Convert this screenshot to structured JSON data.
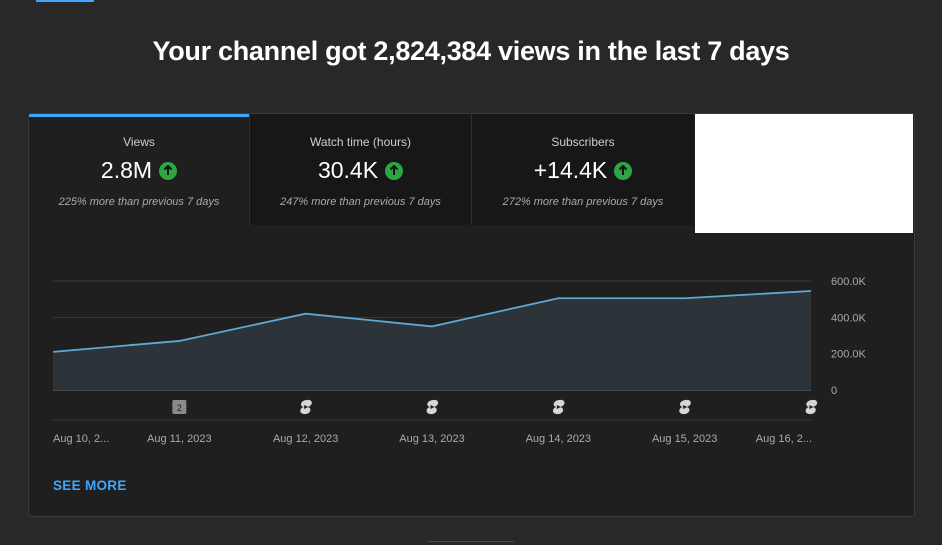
{
  "headline": "Your channel got 2,824,384 views in the last 7 days",
  "metrics": [
    {
      "label": "Views",
      "value": "2.8M",
      "change": "225% more than previous 7 days",
      "active": true
    },
    {
      "label": "Watch time (hours)",
      "value": "30.4K",
      "change": "247% more than previous 7 days",
      "active": false
    },
    {
      "label": "Subscribers",
      "value": "+14.4K",
      "change": "272% more than previous 7 days",
      "active": false
    }
  ],
  "see_more": "SEE MORE",
  "colors": {
    "accent": "#3ea6ff",
    "up_badge": "#2ba640",
    "line": "#5fa8d3",
    "area": "#2c3339"
  },
  "chart_data": {
    "type": "area",
    "x": [
      "Aug 10, 2...",
      "Aug 11, 2023",
      "Aug 12, 2023",
      "Aug 13, 2023",
      "Aug 14, 2023",
      "Aug 15, 2023",
      "Aug 16, 2..."
    ],
    "series": [
      {
        "values": [
          210000,
          270000,
          420000,
          350000,
          505000,
          505000,
          545000
        ]
      }
    ],
    "ylim": [
      0,
      600000
    ],
    "y_ticks": [
      "600.0K",
      "400.0K",
      "200.0K",
      "0"
    ],
    "y_tick_values": [
      600000,
      400000,
      200000,
      0
    ],
    "grid": true,
    "markers": [
      {
        "label": "2",
        "icon": "video-badge-icon"
      },
      {
        "icon": "shorts-icon"
      },
      {
        "icon": "shorts-icon"
      },
      {
        "icon": "shorts-icon"
      },
      {
        "icon": "shorts-icon"
      },
      {
        "icon": "shorts-icon"
      }
    ]
  }
}
